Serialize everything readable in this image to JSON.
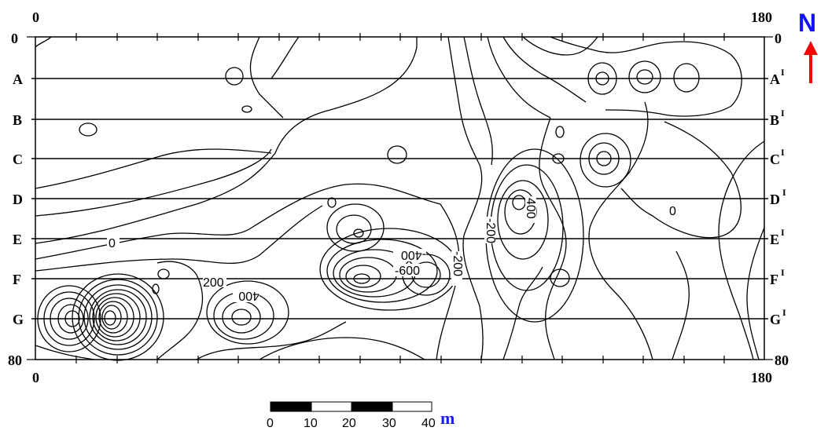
{
  "map": {
    "x_axis": {
      "top_left": "0",
      "top_right": "180",
      "bottom_left": "0",
      "bottom_right": "180"
    },
    "y_axis": {
      "left_top": "0",
      "left_bottom": "80",
      "right_top": "0",
      "right_bottom": "80"
    },
    "profiles_left": [
      "A",
      "B",
      "C",
      "D",
      "E",
      "F",
      "G"
    ],
    "profiles_right": [
      "A",
      "B",
      "C",
      "D",
      "E",
      "F",
      "G"
    ],
    "profile_prime_mark": "I",
    "contour_labels": [
      "0",
      "200",
      "400",
      "-600",
      "-400",
      "-200",
      "-200",
      "400",
      "0"
    ],
    "north_label": "N",
    "north_color": "#1010ff",
    "arrow_color": "#ff0000",
    "scale_bar": {
      "ticks": [
        "0",
        "10",
        "20",
        "30",
        "40"
      ],
      "unit": "m",
      "unit_color": "#1a1aff"
    }
  }
}
